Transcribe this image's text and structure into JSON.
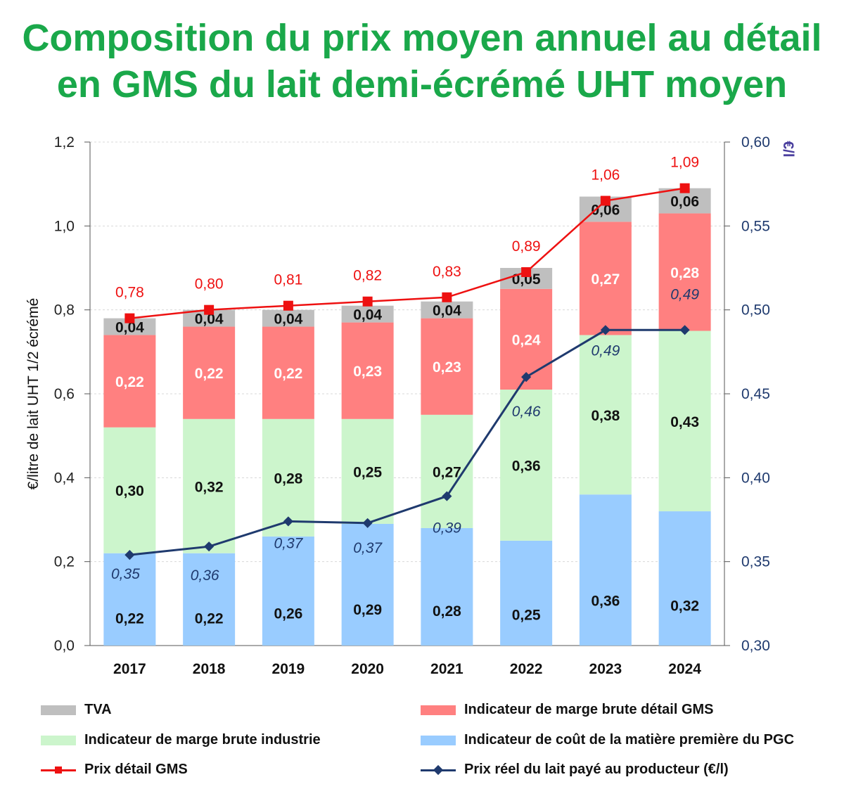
{
  "title": {
    "line1": "Composition du prix moyen annuel au détail",
    "line2": "en GMS du lait demi-écrémé UHT moyen"
  },
  "colors": {
    "title": "#1aa84a",
    "tva": "#bfbfbf",
    "marge_detail": "#ff8080",
    "marge_industrie": "#ccf5cc",
    "matiere": "#99ccff",
    "prix_detail": "#ee1111",
    "prix_producteur": "#1f3a6e"
  },
  "chart_data": {
    "type": "bar",
    "stacked": true,
    "categories": [
      "2017",
      "2018",
      "2019",
      "2020",
      "2021",
      "2022",
      "2023",
      "2024"
    ],
    "series": [
      {
        "name": "Indicateur de coût de la matière première du PGC",
        "values": [
          "0,22",
          "0,22",
          "0,26",
          "0,29",
          "0,28",
          "0,25",
          "0,36",
          "0,32"
        ],
        "numeric": [
          0.22,
          0.22,
          0.26,
          0.29,
          0.28,
          0.25,
          0.36,
          0.32
        ]
      },
      {
        "name": "Indicateur de marge brute industrie",
        "values": [
          "0,30",
          "0,32",
          "0,28",
          "0,25",
          "0,27",
          "0,36",
          "0,38",
          "0,43"
        ],
        "numeric": [
          0.3,
          0.32,
          0.28,
          0.25,
          0.27,
          0.36,
          0.38,
          0.43
        ]
      },
      {
        "name": "Indicateur de marge brute détail GMS",
        "values": [
          "0,22",
          "0,22",
          "0,22",
          "0,23",
          "0,23",
          "0,24",
          "0,27",
          "0,28"
        ],
        "numeric": [
          0.22,
          0.22,
          0.22,
          0.23,
          0.23,
          0.24,
          0.27,
          0.28
        ]
      },
      {
        "name": "TVA",
        "values": [
          "0,04",
          "0,04",
          "0,04",
          "0,04",
          "0,04",
          "0,05",
          "0,06",
          "0,06"
        ],
        "numeric": [
          0.04,
          0.04,
          0.04,
          0.04,
          0.04,
          0.05,
          0.06,
          0.06
        ]
      }
    ],
    "lines": [
      {
        "name": "Prix détail GMS",
        "axis": "left",
        "labels": [
          "0,78",
          "0,80",
          "0,81",
          "0,82",
          "0,83",
          "0,89",
          "1,06",
          "1,09"
        ],
        "values": [
          0.78,
          0.8,
          0.81,
          0.82,
          0.83,
          0.89,
          1.06,
          1.09
        ]
      },
      {
        "name": "Prix réel du lait payé au producteur (€/l)",
        "axis": "right",
        "labels": [
          "0,35",
          "0,36",
          "0,37",
          "0,37",
          "0,39",
          "0,46",
          "0,49",
          "0,49"
        ],
        "values": [
          0.354,
          0.359,
          0.374,
          0.373,
          0.389,
          0.46,
          0.488,
          0.488
        ]
      }
    ],
    "ylabel": "€/litre de lait UHT 1/2 écrémé",
    "y2label": "€/l",
    "ylim": [
      0,
      1.2
    ],
    "y2lim": [
      0.3,
      0.6
    ],
    "yticks": [
      "0,0",
      "0,2",
      "0,4",
      "0,6",
      "0,8",
      "1,0",
      "1,2"
    ],
    "y2ticks": [
      "0,30",
      "0,35",
      "0,40",
      "0,45",
      "0,50",
      "0,55",
      "0,60"
    ],
    "grid": true,
    "legend_position": "bottom"
  },
  "legend": {
    "tva": "TVA",
    "marge_detail": "Indicateur de marge brute détail GMS",
    "marge_industrie": "Indicateur de marge brute industrie",
    "matiere": "Indicateur de coût de la matière première du PGC",
    "prix_detail": "Prix détail GMS",
    "prix_producteur": "Prix réel du lait payé au producteur (€/l)"
  }
}
